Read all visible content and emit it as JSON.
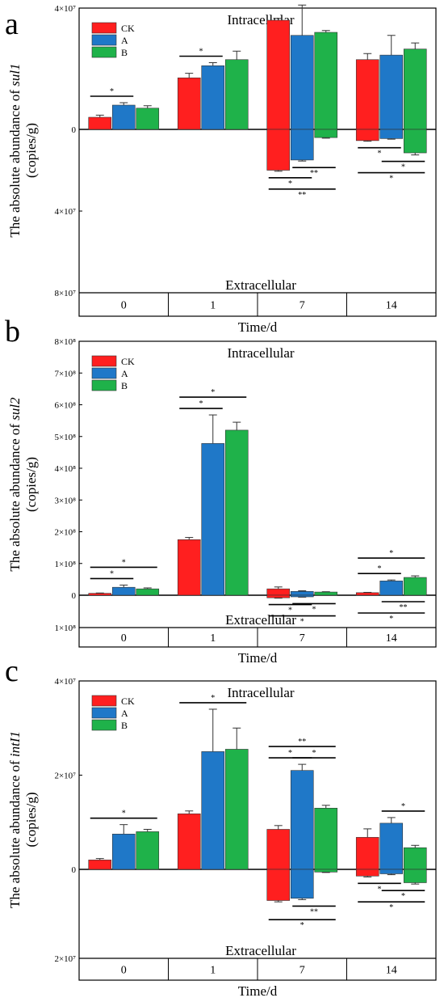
{
  "figure": {
    "series_colors": {
      "CK": "#ff1f1f",
      "A": "#1f78c8",
      "B": "#1fb24a"
    }
  },
  "chart_data": [
    {
      "type": "bar",
      "panel_label": "a",
      "title": "",
      "region_top_label": "Intracellular",
      "region_bottom_label": "Extracellular",
      "xlabel": "Time/d",
      "ylabel_prefix": "The absolute abundance of ",
      "ylabel_gene": "sul1",
      "ylabel_unit": "(copies/g)",
      "categories": [
        "0",
        "1",
        "7",
        "14"
      ],
      "ylim": [
        -80000000,
        40000000
      ],
      "y_ticks": [
        {
          "value": 40000000,
          "label": "4×10⁷"
        },
        {
          "value": 0,
          "label": "0"
        },
        {
          "value": -40000000,
          "label": "4×10⁷"
        },
        {
          "value": -80000000,
          "label": "8×10⁷"
        }
      ],
      "series": [
        {
          "name": "CK",
          "color": "#ff1f1f",
          "intracellular": [
            4000000,
            17000000,
            36000000,
            23000000
          ],
          "intracellular_err": [
            700000,
            1500000,
            600000,
            2000000
          ],
          "extracellular": [
            0,
            0,
            -20000000,
            -5500000
          ],
          "extracellular_err": [
            0,
            0,
            500000,
            300000
          ]
        },
        {
          "name": "A",
          "color": "#1f78c8",
          "intracellular": [
            8000000,
            21000000,
            31000000,
            24500000
          ],
          "intracellular_err": [
            800000,
            1000000,
            10000000,
            6500000
          ],
          "extracellular": [
            0,
            0,
            -15000000,
            -4500000
          ],
          "extracellular_err": [
            0,
            0,
            500000,
            300000
          ]
        },
        {
          "name": "B",
          "color": "#1fb24a",
          "intracellular": [
            7000000,
            23000000,
            32000000,
            26500000
          ],
          "intracellular_err": [
            800000,
            2800000,
            600000,
            2000000
          ],
          "extracellular": [
            0,
            0,
            -4000000,
            -11500000
          ],
          "extracellular_err": [
            0,
            0,
            300000,
            1000000
          ]
        }
      ],
      "significance": [
        {
          "cat": 0,
          "from": 0,
          "to": 1,
          "side": "top",
          "level": 0,
          "label": "*"
        },
        {
          "cat": 1,
          "from": 0,
          "to": 1,
          "side": "top",
          "level": 0,
          "label": "*"
        },
        {
          "cat": 2,
          "from": 1,
          "to": 2,
          "side": "top",
          "level": 0,
          "label": "*"
        },
        {
          "cat": 2,
          "from": 0,
          "to": 1,
          "side": "bottom",
          "level": 0,
          "label": "*"
        },
        {
          "cat": 2,
          "from": 1,
          "to": 2,
          "side": "bottom",
          "level": 0,
          "label": "**"
        },
        {
          "cat": 2,
          "from": 0,
          "to": 2,
          "side": "bottom",
          "level": 1,
          "label": "**"
        },
        {
          "cat": 3,
          "from": 0,
          "to": 1,
          "side": "bottom",
          "level": 0,
          "label": "*"
        },
        {
          "cat": 3,
          "from": 1,
          "to": 2,
          "side": "bottom",
          "level": 0,
          "label": "*"
        },
        {
          "cat": 3,
          "from": 0,
          "to": 2,
          "side": "bottom",
          "level": 1,
          "label": "*"
        }
      ],
      "legend": [
        "CK",
        "A",
        "B"
      ],
      "legend_position": "top-left"
    },
    {
      "type": "bar",
      "panel_label": "b",
      "title": "",
      "region_top_label": "Intracellular",
      "region_bottom_label": "Extracellular",
      "xlabel": "Time/d",
      "ylabel_prefix": "The absolute abundance of ",
      "ylabel_gene": "sul2",
      "ylabel_unit": "(copies/g)",
      "categories": [
        "0",
        "1",
        "7",
        "14"
      ],
      "ylim": [
        -100000000,
        800000000
      ],
      "y_ticks": [
        {
          "value": 800000000,
          "label": "8×10⁸"
        },
        {
          "value": 700000000,
          "label": "7×10⁸"
        },
        {
          "value": 600000000,
          "label": "6×10⁸"
        },
        {
          "value": 500000000,
          "label": "5×10⁸"
        },
        {
          "value": 400000000,
          "label": "4×10⁸"
        },
        {
          "value": 300000000,
          "label": "3×10⁸"
        },
        {
          "value": 200000000,
          "label": "2×10⁸"
        },
        {
          "value": 100000000,
          "label": "1×10⁸"
        },
        {
          "value": 0,
          "label": "0"
        },
        {
          "value": -100000000,
          "label": "1×10⁸"
        }
      ],
      "series": [
        {
          "name": "CK",
          "color": "#ff1f1f",
          "intracellular": [
            6000000,
            175000000,
            20000000,
            8000000
          ],
          "intracellular_err": [
            1000000,
            7000000,
            6000000,
            1000000
          ],
          "extracellular": [
            0,
            0,
            -8000000,
            0
          ],
          "extracellular_err": [
            0,
            0,
            1000000,
            0
          ]
        },
        {
          "name": "A",
          "color": "#1f78c8",
          "intracellular": [
            25000000,
            478000000,
            12000000,
            45000000
          ],
          "intracellular_err": [
            7000000,
            90000000,
            2000000,
            3000000
          ],
          "extracellular": [
            0,
            0,
            -5000000,
            0
          ],
          "extracellular_err": [
            0,
            0,
            1000000,
            0
          ]
        },
        {
          "name": "B",
          "color": "#1fb24a",
          "intracellular": [
            20000000,
            520000000,
            10000000,
            56000000
          ],
          "intracellular_err": [
            3000000,
            25000000,
            1000000,
            5000000
          ],
          "extracellular": [
            0,
            0,
            0,
            0
          ],
          "extracellular_err": [
            0,
            0,
            0,
            0
          ]
        }
      ],
      "significance": [
        {
          "cat": 0,
          "from": 0,
          "to": 1,
          "side": "top",
          "level": 0,
          "label": "*"
        },
        {
          "cat": 0,
          "from": 0,
          "to": 2,
          "side": "top",
          "level": 1,
          "label": "*"
        },
        {
          "cat": 1,
          "from": 0,
          "to": 1,
          "side": "top",
          "level": 0,
          "label": "*"
        },
        {
          "cat": 1,
          "from": 0,
          "to": 2,
          "side": "top",
          "level": 1,
          "label": "*"
        },
        {
          "cat": 2,
          "from": 0,
          "to": 1,
          "side": "bottom",
          "level": 0,
          "label": "*"
        },
        {
          "cat": 2,
          "from": 1,
          "to": 2,
          "side": "bottom",
          "level": 0,
          "label": "*"
        },
        {
          "cat": 2,
          "from": 0,
          "to": 2,
          "side": "bottom",
          "level": 1,
          "label": "*"
        },
        {
          "cat": 3,
          "from": 0,
          "to": 1,
          "side": "top",
          "level": 0,
          "label": "*"
        },
        {
          "cat": 3,
          "from": 0,
          "to": 2,
          "side": "top",
          "level": 1,
          "label": "*"
        },
        {
          "cat": 3,
          "from": 1,
          "to": 2,
          "side": "bottom",
          "level": 0,
          "label": "**"
        },
        {
          "cat": 3,
          "from": 0,
          "to": 2,
          "side": "bottom",
          "level": 1,
          "label": "*"
        }
      ],
      "legend": [
        "CK",
        "A",
        "B"
      ],
      "legend_position": "top-left"
    },
    {
      "type": "bar",
      "panel_label": "c",
      "title": "",
      "region_top_label": "Intracellular",
      "region_bottom_label": "Extracellular",
      "xlabel": "Time/d",
      "ylabel_prefix": "The absolute abundance of ",
      "ylabel_gene": "intI1",
      "ylabel_unit": "(copies/g)",
      "categories": [
        "0",
        "1",
        "7",
        "14"
      ],
      "ylim": [
        -20000000,
        40000000
      ],
      "y_ticks": [
        {
          "value": 40000000,
          "label": "4×10⁷"
        },
        {
          "value": 20000000,
          "label": "2×10⁷"
        },
        {
          "value": 0,
          "label": "0"
        },
        {
          "value": -20000000,
          "label": "2×10⁷"
        }
      ],
      "series": [
        {
          "name": "CK",
          "color": "#ff1f1f",
          "intracellular": [
            2000000,
            11800000,
            8500000,
            6800000
          ],
          "intracellular_err": [
            300000,
            600000,
            800000,
            1800000
          ],
          "extracellular": [
            0,
            0,
            -7000000,
            -1500000
          ],
          "extracellular_err": [
            0,
            0,
            300000,
            200000
          ]
        },
        {
          "name": "A",
          "color": "#1f78c8",
          "intracellular": [
            7500000,
            25000000,
            21000000,
            9800000
          ],
          "intracellular_err": [
            2000000,
            9000000,
            1300000,
            1200000
          ],
          "extracellular": [
            0,
            0,
            -6500000,
            -1000000
          ],
          "extracellular_err": [
            0,
            0,
            300000,
            200000
          ]
        },
        {
          "name": "B",
          "color": "#1fb24a",
          "intracellular": [
            8000000,
            25500000,
            13000000,
            4600000
          ],
          "intracellular_err": [
            500000,
            4500000,
            600000,
            500000
          ],
          "extracellular": [
            0,
            0,
            -600000,
            -3000000
          ],
          "extracellular_err": [
            0,
            0,
            100000,
            300000
          ]
        }
      ],
      "significance": [
        {
          "cat": 0,
          "from": 0,
          "to": 2,
          "side": "top",
          "level": 0,
          "label": "*"
        },
        {
          "cat": 1,
          "from": 0,
          "to": 2,
          "side": "top",
          "level": 0,
          "label": "*"
        },
        {
          "cat": 2,
          "from": 0,
          "to": 1,
          "side": "top",
          "level": 0,
          "label": "*"
        },
        {
          "cat": 2,
          "from": 1,
          "to": 2,
          "side": "top",
          "level": 0,
          "label": "*"
        },
        {
          "cat": 2,
          "from": 0,
          "to": 2,
          "side": "top",
          "level": 1,
          "label": "**"
        },
        {
          "cat": 2,
          "from": 1,
          "to": 2,
          "side": "bottom",
          "level": 0,
          "label": "**"
        },
        {
          "cat": 2,
          "from": 0,
          "to": 2,
          "side": "bottom",
          "level": 1,
          "label": "*"
        },
        {
          "cat": 3,
          "from": 1,
          "to": 2,
          "side": "top",
          "level": 0,
          "label": "*"
        },
        {
          "cat": 3,
          "from": 0,
          "to": 1,
          "side": "bottom",
          "level": 0,
          "label": "*"
        },
        {
          "cat": 3,
          "from": 1,
          "to": 2,
          "side": "bottom",
          "level": 0,
          "label": "*"
        },
        {
          "cat": 3,
          "from": 0,
          "to": 2,
          "side": "bottom",
          "level": 1,
          "label": "*"
        }
      ],
      "legend": [
        "CK",
        "A",
        "B"
      ],
      "legend_position": "top-left"
    }
  ]
}
